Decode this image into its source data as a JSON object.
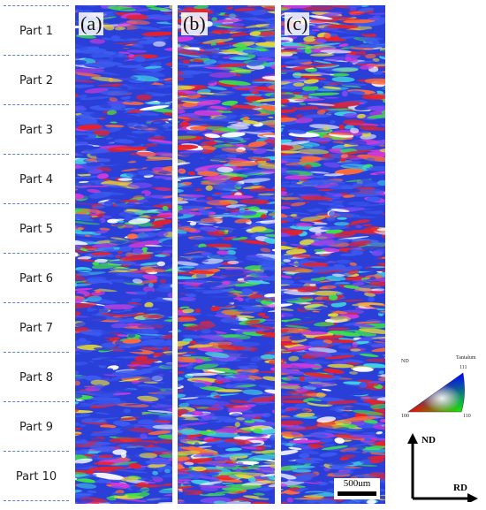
{
  "parts": [
    "Part 1",
    "Part 2",
    "Part 3",
    "Part 4",
    "Part 5",
    "Part 6",
    "Part 7",
    "Part 8",
    "Part 9",
    "Part 10"
  ],
  "panels": [
    {
      "label": "(a)",
      "blue_bias": 0.62
    },
    {
      "label": "(b)",
      "blue_bias": 0.42
    },
    {
      "label": "(c)",
      "blue_bias": 0.5
    }
  ],
  "scale_bar": {
    "label": "500um"
  },
  "ipf_key": {
    "nd_label": "ND",
    "material": "Tantalum",
    "pole_111": "111",
    "pole_100": "100",
    "pole_110": "110"
  },
  "axes": {
    "vertical_label": "ND",
    "horizontal_label": "RD"
  },
  "colors": {
    "dash": "#5b7fc9",
    "red": "#e8212a",
    "blue": "#2a3fd8",
    "green": "#3ee04a",
    "magenta": "#d23ad8",
    "cyan": "#3fd0e0",
    "yellow": "#e0d43a"
  }
}
